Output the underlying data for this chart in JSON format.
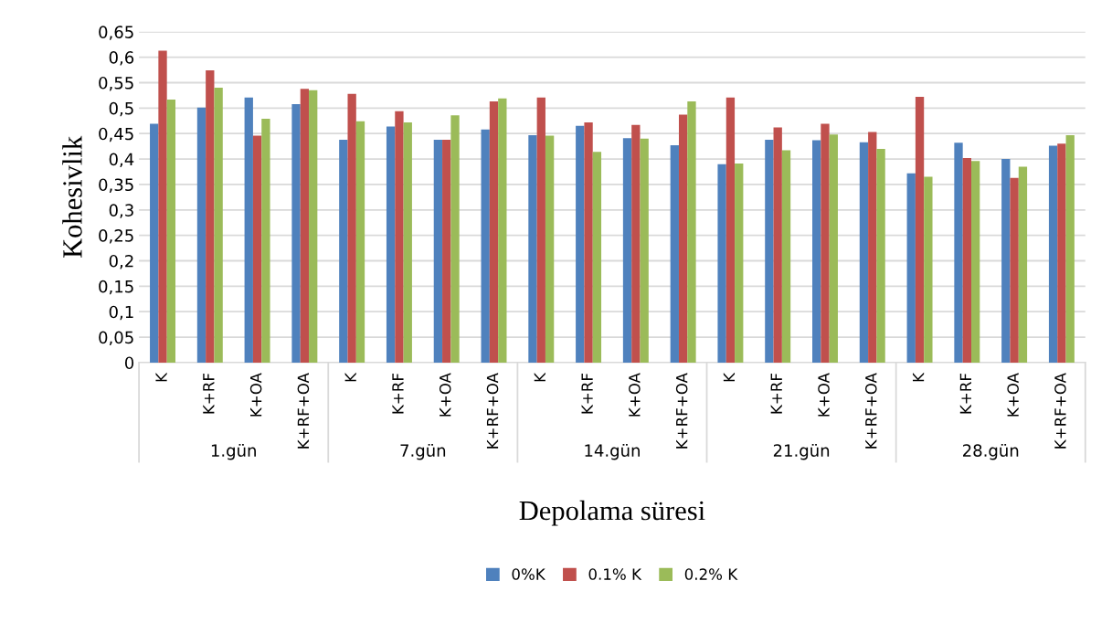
{
  "chart_data": {
    "type": "bar",
    "xlabel": "Depolama süresi",
    "ylabel": "Kohesivlik",
    "categories": [
      "K",
      "K+RF",
      "K+OA",
      "K+RF+OA",
      "K",
      "K+RF",
      "K+OA",
      "K+RF+OA",
      "K",
      "K+RF",
      "K+OA",
      "K+RF+OA",
      "K",
      "K+RF",
      "K+OA",
      "K+RF+OA",
      "K",
      "K+RF",
      "K+OA",
      "K+RF+OA"
    ],
    "annotations": [
      "1.gün",
      "7.gün",
      "14.gün",
      "21.gün",
      "28.gün"
    ],
    "series": [
      {
        "name": "0%K",
        "color": "#4f81bd",
        "values": [
          0.469,
          0.501,
          0.521,
          0.508,
          0.438,
          0.464,
          0.438,
          0.458,
          0.447,
          0.465,
          0.441,
          0.427,
          0.39,
          0.438,
          0.437,
          0.433,
          0.372,
          0.432,
          0.4,
          0.426
        ]
      },
      {
        "name": "0.1% K",
        "color": "#c0504d",
        "values": [
          0.613,
          0.574,
          0.446,
          0.538,
          0.528,
          0.494,
          0.438,
          0.513,
          0.521,
          0.472,
          0.467,
          0.487,
          0.521,
          0.462,
          0.469,
          0.453,
          0.522,
          0.402,
          0.363,
          0.43
        ]
      },
      {
        "name": "0.2% K",
        "color": "#9bbb59",
        "values": [
          0.517,
          0.54,
          0.479,
          0.535,
          0.474,
          0.472,
          0.486,
          0.519,
          0.446,
          0.414,
          0.44,
          0.513,
          0.391,
          0.417,
          0.448,
          0.42,
          0.365,
          0.396,
          0.385,
          0.447
        ]
      }
    ],
    "ylim": [
      0,
      0.65
    ],
    "yticks": [
      {
        "value": 0,
        "label": "0"
      },
      {
        "value": 0.05,
        "label": "0,05"
      },
      {
        "value": 0.1,
        "label": "0,1"
      },
      {
        "value": 0.15,
        "label": "0,15"
      },
      {
        "value": 0.2,
        "label": "0,2"
      },
      {
        "value": 0.25,
        "label": "0,25"
      },
      {
        "value": 0.3,
        "label": "0,3"
      },
      {
        "value": 0.35,
        "label": "0,35"
      },
      {
        "value": 0.4,
        "label": "0,4"
      },
      {
        "value": 0.45,
        "label": "0,45"
      },
      {
        "value": 0.5,
        "label": "0,5"
      },
      {
        "value": 0.55,
        "label": "0,55"
      },
      {
        "value": 0.6,
        "label": "0,6"
      },
      {
        "value": 0.65,
        "label": "0,65"
      }
    ],
    "grid": "y",
    "legend": "bottom"
  }
}
